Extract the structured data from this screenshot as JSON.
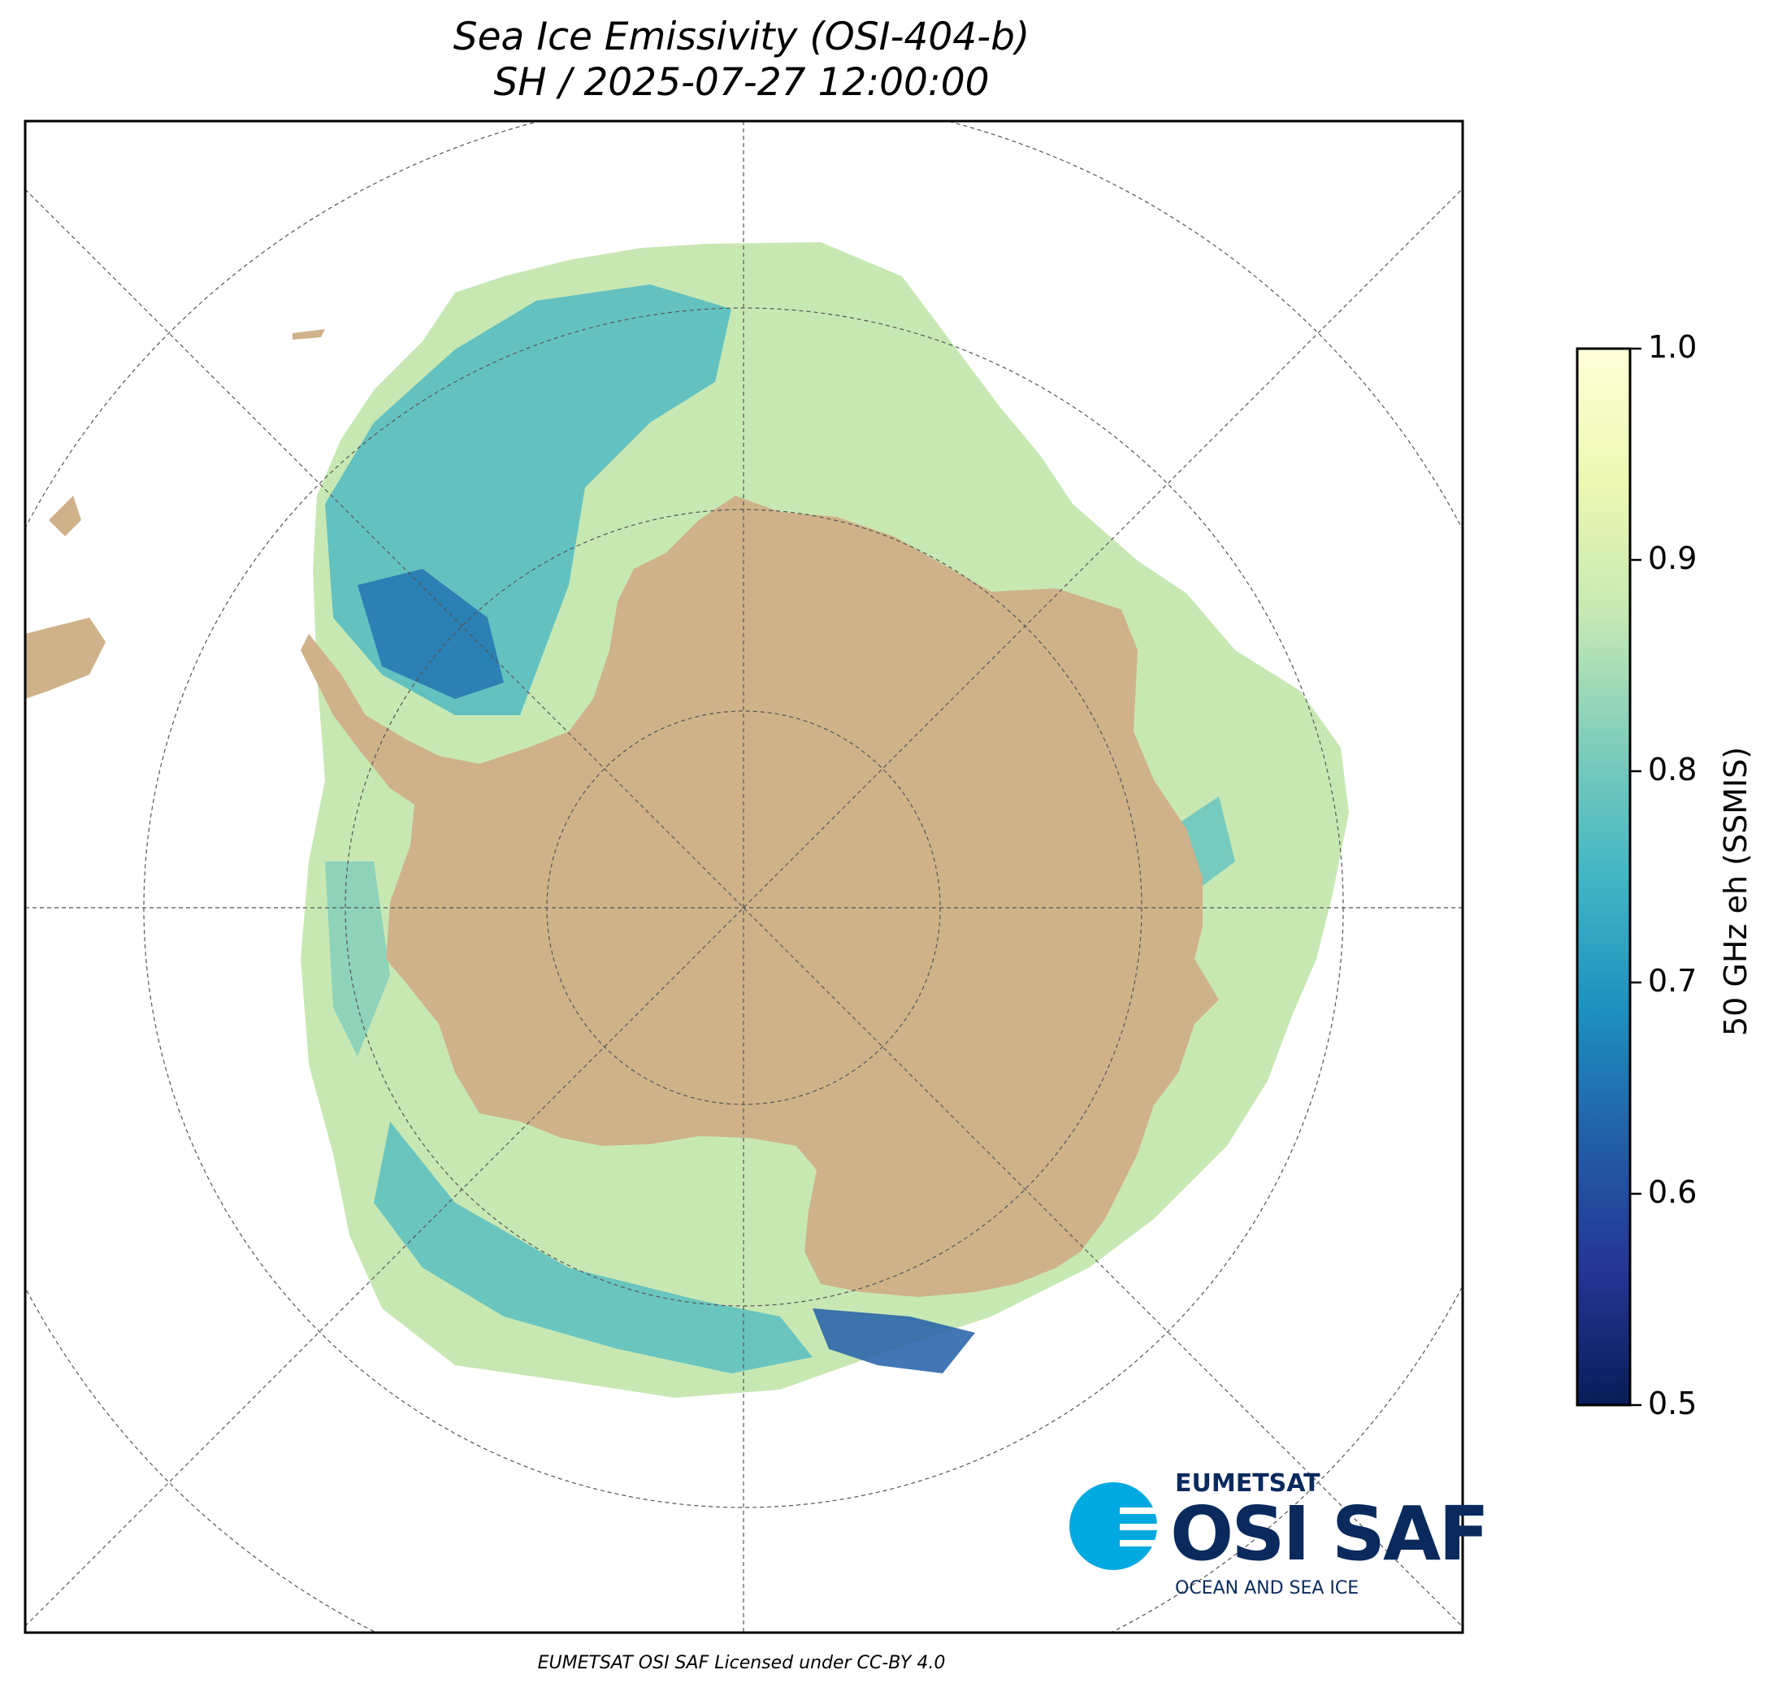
{
  "title": {
    "line1": "Sea Ice Emissivity (OSI-404-b)",
    "line2": "SH / 2025-07-27 12:00:00"
  },
  "colorbar": {
    "label": "50 GHz eh (SSMIS)",
    "ticks": [
      "1.0",
      "0.9",
      "0.8",
      "0.7",
      "0.6",
      "0.5"
    ],
    "range": [
      0.5,
      1.0
    ],
    "colors": [
      "#081d58",
      "#253494",
      "#225ea8",
      "#1d91c0",
      "#41b6c4",
      "#7fcdbb",
      "#c7e9b4",
      "#edf8b1",
      "#ffffd9"
    ]
  },
  "map": {
    "projection": "south polar stereographic",
    "land_color": "#cfb28a",
    "ocean_color": "#ffffff",
    "grid_style": "dashed"
  },
  "logo": {
    "brand": "EUMETSAT",
    "name": "OSI SAF",
    "tagline": "OCEAN AND SEA ICE"
  },
  "footer": "EUMETSAT OSI SAF Licensed under CC-BY 4.0"
}
